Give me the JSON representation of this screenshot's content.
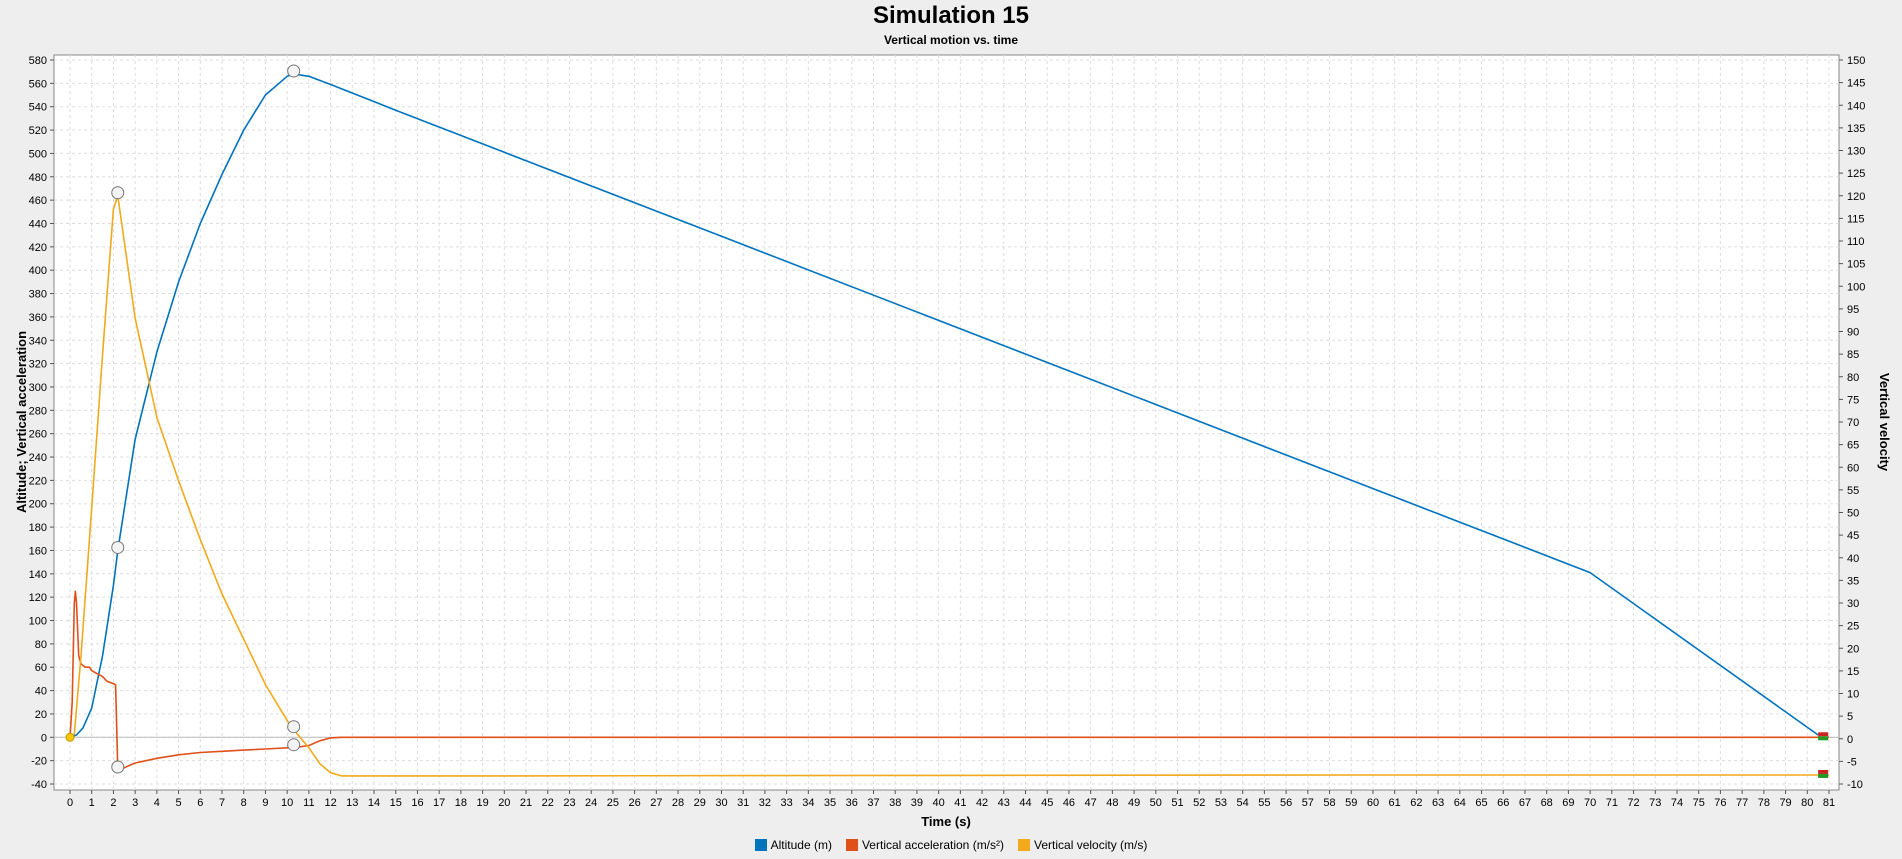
{
  "chart_data": {
    "type": "line",
    "title": "Simulation 15",
    "subtitle": "Vertical motion vs. time",
    "xlabel": "Time (s)",
    "ylabel_left": "Altitude; Vertical acceleration",
    "ylabel_right": "Vertical velocity",
    "xlim": [
      0,
      81
    ],
    "ylim_left": [
      -40,
      580
    ],
    "ylim_right": [
      -10,
      150
    ],
    "x_ticks": [
      0,
      1,
      2,
      3,
      4,
      5,
      6,
      7,
      8,
      9,
      10,
      11,
      12,
      13,
      14,
      15,
      16,
      17,
      18,
      19,
      20,
      21,
      22,
      23,
      24,
      25,
      26,
      27,
      28,
      29,
      30,
      31,
      32,
      33,
      34,
      35,
      36,
      37,
      38,
      39,
      40,
      41,
      42,
      43,
      44,
      45,
      46,
      47,
      48,
      49,
      50,
      51,
      52,
      53,
      54,
      55,
      56,
      57,
      58,
      59,
      60,
      61,
      62,
      63,
      64,
      65,
      66,
      67,
      68,
      69,
      70,
      71,
      72,
      73,
      74,
      75,
      76,
      77,
      78,
      79,
      80,
      81
    ],
    "y_ticks_left": [
      -40,
      -20,
      0,
      20,
      40,
      60,
      80,
      100,
      120,
      140,
      160,
      180,
      200,
      220,
      240,
      260,
      280,
      300,
      320,
      340,
      360,
      380,
      400,
      420,
      440,
      460,
      480,
      500,
      520,
      540,
      560,
      580
    ],
    "y_ticks_right": [
      -10,
      -5,
      0,
      5,
      10,
      15,
      20,
      25,
      30,
      35,
      40,
      45,
      50,
      55,
      60,
      65,
      70,
      75,
      80,
      85,
      90,
      95,
      100,
      105,
      110,
      115,
      120,
      125,
      130,
      135,
      140,
      145,
      150
    ],
    "grid": true,
    "legend_position": "bottom-center",
    "series": [
      {
        "name": "Altitude (m)",
        "axis": "left",
        "color": "#0073bd",
        "points": [
          [
            0,
            0
          ],
          [
            0.3,
            2
          ],
          [
            0.6,
            8
          ],
          [
            1.0,
            25
          ],
          [
            1.5,
            70
          ],
          [
            2.0,
            130
          ],
          [
            2.2,
            160
          ],
          [
            3,
            255
          ],
          [
            4,
            330
          ],
          [
            5,
            390
          ],
          [
            6,
            440
          ],
          [
            7,
            482
          ],
          [
            8,
            520
          ],
          [
            9,
            550
          ],
          [
            10,
            566
          ],
          [
            10.3,
            568
          ],
          [
            11,
            566
          ],
          [
            12,
            559
          ],
          [
            15,
            537
          ],
          [
            20,
            501
          ],
          [
            30,
            429
          ],
          [
            40,
            357
          ],
          [
            50,
            285
          ],
          [
            60,
            213
          ],
          [
            70,
            141
          ],
          [
            80.5,
            2
          ]
        ]
      },
      {
        "name": "Vertical acceleration (m/s²)",
        "axis": "left",
        "color": "#e0501a",
        "points": [
          [
            0,
            0
          ],
          [
            0.1,
            30
          ],
          [
            0.2,
            115
          ],
          [
            0.25,
            125
          ],
          [
            0.3,
            115
          ],
          [
            0.4,
            70
          ],
          [
            0.5,
            63
          ],
          [
            0.7,
            60
          ],
          [
            0.9,
            60
          ],
          [
            1.0,
            57
          ],
          [
            1.2,
            55
          ],
          [
            1.5,
            52
          ],
          [
            1.7,
            48
          ],
          [
            2.0,
            46
          ],
          [
            2.1,
            45
          ],
          [
            2.2,
            -28
          ],
          [
            2.5,
            -26
          ],
          [
            3,
            -22
          ],
          [
            4,
            -18
          ],
          [
            5,
            -15
          ],
          [
            6,
            -13
          ],
          [
            7,
            -12
          ],
          [
            8,
            -11
          ],
          [
            9,
            -10
          ],
          [
            10,
            -9
          ],
          [
            10.3,
            -9
          ],
          [
            11,
            -7
          ],
          [
            11.5,
            -3
          ],
          [
            12,
            -0.5
          ],
          [
            12.5,
            0
          ],
          [
            20,
            0
          ],
          [
            40,
            0
          ],
          [
            60,
            0
          ],
          [
            81,
            0
          ]
        ]
      },
      {
        "name": "Vertical velocity (m/s)",
        "axis": "right",
        "color": "#f2a91c",
        "points": [
          [
            0,
            0
          ],
          [
            0.2,
            1
          ],
          [
            0.5,
            18
          ],
          [
            1.0,
            51
          ],
          [
            1.5,
            85
          ],
          [
            2.0,
            117
          ],
          [
            2.2,
            120
          ],
          [
            3,
            93
          ],
          [
            4,
            71
          ],
          [
            5,
            57
          ],
          [
            6,
            44
          ],
          [
            7,
            32
          ],
          [
            8,
            22
          ],
          [
            9,
            12
          ],
          [
            10,
            4
          ],
          [
            10.3,
            2
          ],
          [
            11,
            -2
          ],
          [
            11.5,
            -5.5
          ],
          [
            12,
            -7.5
          ],
          [
            12.5,
            -8.2
          ],
          [
            20,
            -8.2
          ],
          [
            40,
            -8.1
          ],
          [
            60,
            -8.0
          ],
          [
            81,
            -8.0
          ]
        ]
      }
    ]
  }
}
